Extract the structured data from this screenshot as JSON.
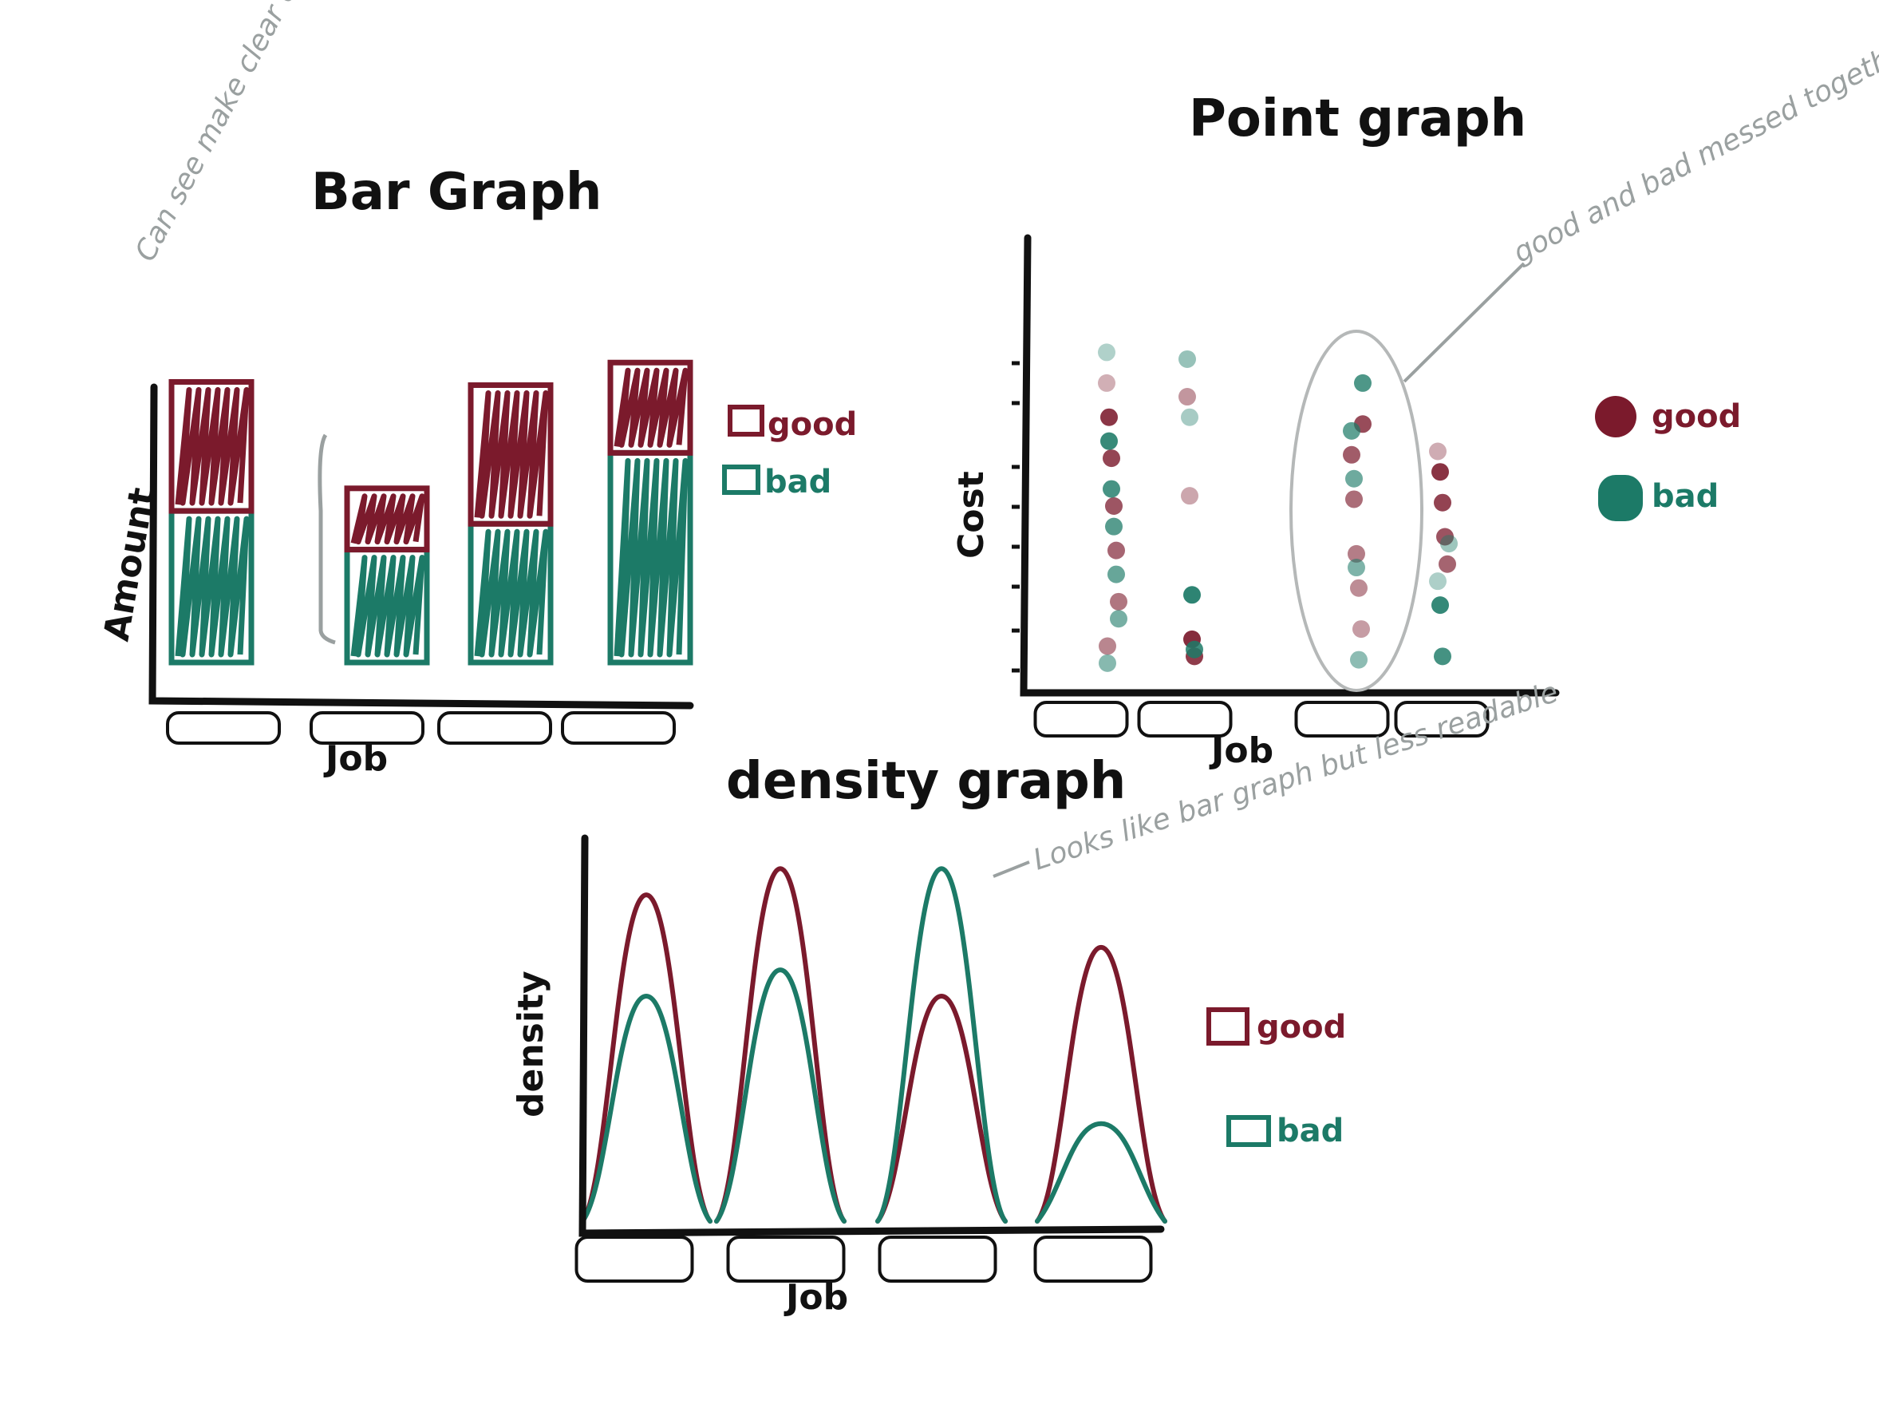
{
  "colors": {
    "good": "#7b1a2c",
    "bad": "#1c7a67",
    "ink": "#111111",
    "note": "#9aa0a0"
  },
  "chart_data": [
    {
      "type": "bar",
      "title": "Bar Graph",
      "xlabel": "Job",
      "ylabel": "Amount",
      "categories": [
        "",
        "",
        "",
        ""
      ],
      "stacked": true,
      "series": [
        {
          "name": "bad",
          "values": [
            4.7,
            3.5,
            4.3,
            6.5
          ]
        },
        {
          "name": "good",
          "values": [
            4.0,
            1.9,
            4.3,
            2.8
          ]
        }
      ],
      "ylim": [
        0,
        10
      ],
      "legend": "right",
      "note": "Can see make clear of percentage of bad (hard to)"
    },
    {
      "type": "scatter",
      "title": "Point graph",
      "xlabel": "Job",
      "ylabel": "Cost",
      "categories": [
        "",
        "",
        "",
        ""
      ],
      "series": [
        {
          "name": "good",
          "points": [
            [
              1,
              8.6
            ],
            [
              1,
              7.6
            ],
            [
              1,
              6.4
            ],
            [
              1,
              5.0
            ],
            [
              1,
              3.7
            ],
            [
              1,
              2.2
            ],
            [
              1,
              0.9
            ],
            [
              2,
              8.2
            ],
            [
              2,
              5.3
            ],
            [
              2,
              1.1
            ],
            [
              2,
              0.6
            ],
            [
              3,
              7.4
            ],
            [
              3,
              6.5
            ],
            [
              3,
              5.2
            ],
            [
              3,
              3.6
            ],
            [
              3,
              2.6
            ],
            [
              3,
              1.4
            ],
            [
              4,
              6.6
            ],
            [
              4,
              6.0
            ],
            [
              4,
              5.1
            ],
            [
              4,
              4.1
            ],
            [
              4,
              3.3
            ]
          ]
        },
        {
          "name": "bad",
          "points": [
            [
              1,
              9.5
            ],
            [
              1,
              6.9
            ],
            [
              1,
              5.5
            ],
            [
              1,
              4.4
            ],
            [
              1,
              3.0
            ],
            [
              1,
              1.7
            ],
            [
              1,
              0.4
            ],
            [
              2,
              9.3
            ],
            [
              2,
              7.6
            ],
            [
              2,
              2.4
            ],
            [
              2,
              0.8
            ],
            [
              3,
              8.6
            ],
            [
              3,
              7.2
            ],
            [
              3,
              5.8
            ],
            [
              3,
              3.2
            ],
            [
              3,
              0.5
            ],
            [
              4,
              3.9
            ],
            [
              4,
              2.8
            ],
            [
              4,
              2.1
            ],
            [
              4,
              0.6
            ]
          ]
        }
      ],
      "legend": "right",
      "note": "good and bad messed together"
    },
    {
      "type": "line",
      "title": "density graph",
      "xlabel": "Job",
      "ylabel": "density",
      "categories": [
        "",
        "",
        "",
        ""
      ],
      "series": [
        {
          "name": "good",
          "peaks": [
            8.7,
            9.4,
            6.0,
            7.3
          ]
        },
        {
          "name": "bad",
          "peaks": [
            6.0,
            6.7,
            9.4,
            2.6
          ]
        }
      ],
      "legend": "right",
      "note": "Looks like bar graph but less readable"
    }
  ],
  "legend_labels": {
    "good": "good",
    "bad": "bad"
  }
}
